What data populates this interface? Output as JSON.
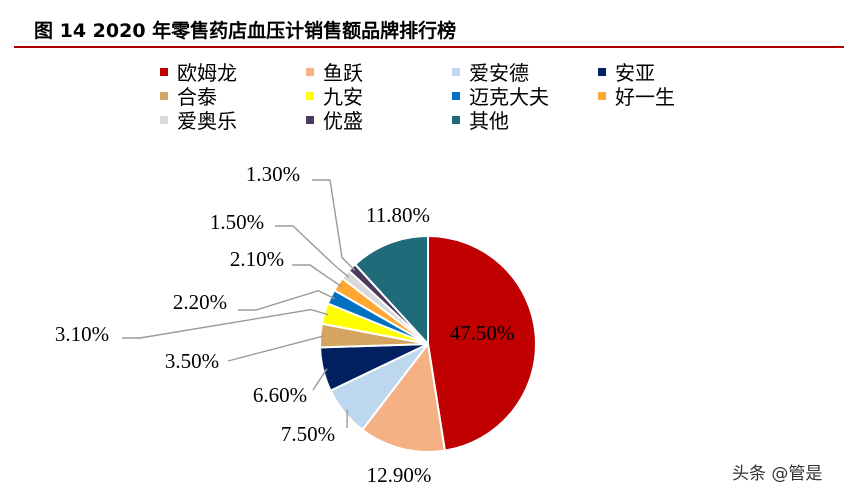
{
  "title": "图 14 2020 年零售药店血压计销售额品牌排行榜",
  "watermark": "头条 @管是",
  "chart_data": {
    "type": "pie",
    "title": "图 14 2020 年零售药店血压计销售额品牌排行榜",
    "legend_position": "top",
    "series": [
      {
        "name": "欧姆龙",
        "value": 47.5,
        "label": "47.50%",
        "color": "#c00000"
      },
      {
        "name": "鱼跃",
        "value": 12.9,
        "label": "12.90%",
        "color": "#f4b183"
      },
      {
        "name": "爱安德",
        "value": 7.5,
        "label": "7.50%",
        "color": "#bdd7ee"
      },
      {
        "name": "安亚",
        "value": 6.6,
        "label": "6.60%",
        "color": "#002060"
      },
      {
        "name": "合泰",
        "value": 3.5,
        "label": "3.50%",
        "color": "#d6a461"
      },
      {
        "name": "九安",
        "value": 3.1,
        "label": "3.10%",
        "color": "#ffff00"
      },
      {
        "name": "迈克大夫",
        "value": 2.2,
        "label": "2.20%",
        "color": "#0070c0"
      },
      {
        "name": "好一生",
        "value": 2.1,
        "label": "2.10%",
        "color": "#ffa733"
      },
      {
        "name": "爱奥乐",
        "value": 1.5,
        "label": "1.50%",
        "color": "#d9d9d9"
      },
      {
        "name": "优盛",
        "value": 1.3,
        "label": "1.30%",
        "color": "#4b3a5e"
      },
      {
        "name": "其他",
        "value": 11.8,
        "label": "11.80%",
        "color": "#1f6b7a"
      }
    ]
  }
}
